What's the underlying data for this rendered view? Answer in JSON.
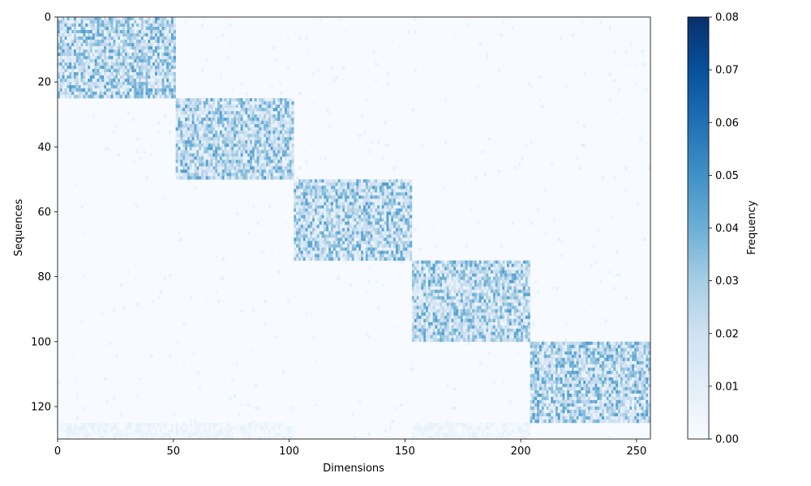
{
  "chart_data": {
    "type": "heatmap",
    "xlabel": "Dimensions",
    "ylabel": "Sequences",
    "colorbar_label": "Frequency",
    "colormap": "Blues",
    "x_range": [
      0,
      256
    ],
    "y_range": [
      0,
      130
    ],
    "y_inverted": true,
    "x_ticks": [
      0,
      50,
      100,
      150,
      200,
      250
    ],
    "y_ticks": [
      0,
      20,
      40,
      60,
      80,
      100,
      120
    ],
    "colorbar_range": [
      0,
      0.08
    ],
    "colorbar_ticks": [
      "0.00",
      "0.01",
      "0.02",
      "0.03",
      "0.04",
      "0.05",
      "0.06",
      "0.07",
      "0.08"
    ],
    "blocks": [
      {
        "rows": [
          0,
          25
        ],
        "cols": [
          0,
          51
        ],
        "mean_value": 0.025
      },
      {
        "rows": [
          25,
          50
        ],
        "cols": [
          51,
          102
        ],
        "mean_value": 0.025
      },
      {
        "rows": [
          50,
          75
        ],
        "cols": [
          102,
          153
        ],
        "mean_value": 0.025
      },
      {
        "rows": [
          75,
          100
        ],
        "cols": [
          153,
          204
        ],
        "mean_value": 0.025
      },
      {
        "rows": [
          100,
          125
        ],
        "cols": [
          204,
          256
        ],
        "mean_value": 0.025
      }
    ],
    "faint_bands": [
      {
        "rows": [
          125,
          130
        ],
        "cols": [
          0,
          102
        ],
        "mean_value": 0.004
      },
      {
        "rows": [
          125,
          130
        ],
        "cols": [
          153,
          204
        ],
        "mean_value": 0.004
      }
    ],
    "background_value": 0.0
  }
}
